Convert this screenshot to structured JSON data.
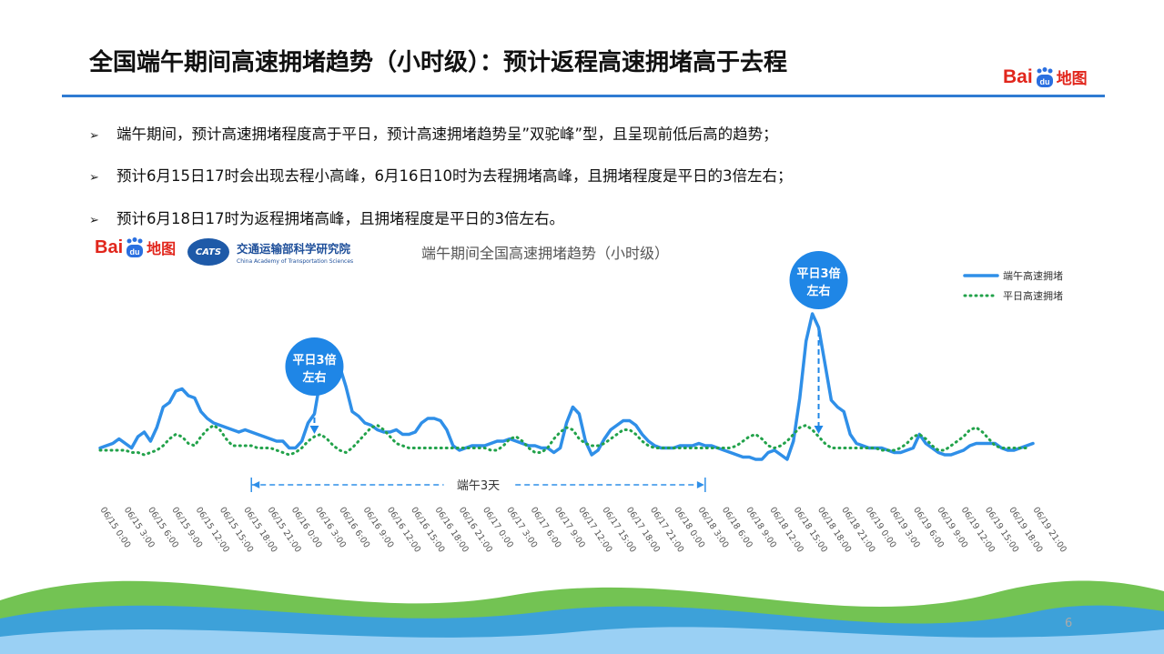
{
  "slide": {
    "title": "全国端午期间高速拥堵趋势（小时级）：预计返程高速拥堵高于去程",
    "page_number": "6"
  },
  "brand": {
    "bai": "Bai",
    "du": "du",
    "ditu": "地图"
  },
  "cats_logo": {
    "mark": "CATS",
    "name_cn": "交通运输部科学研究院",
    "name_en": "China Academy of Transportation Sciences"
  },
  "bullets": [
    "端午期间，预计高速拥堵程度高于平日，预计高速拥堵趋势呈”双驼峰”型，且呈现前低后高的趋势；",
    "预计6月15日17时会出现去程小高峰，6月16日10时为去程拥堵高峰，且拥堵程度是平日的3倍左右；",
    "预计6月18日17时为返程拥堵高峰，且拥堵程度是平日的3倍左右。"
  ],
  "chart_data": {
    "type": "line",
    "title": "端午期间全国高速拥堵趋势（小时级）",
    "x_tick_labels": [
      "06/15 0:00",
      "06/15 3:00",
      "06/15 6:00",
      "06/15 9:00",
      "06/15 12:00",
      "06/15 15:00",
      "06/15 18:00",
      "06/15 21:00",
      "06/16 0:00",
      "06/16 3:00",
      "06/16 6:00",
      "06/16 9:00",
      "06/16 12:00",
      "06/16 15:00",
      "06/16 18:00",
      "06/16 21:00",
      "06/17 0:00",
      "06/17 3:00",
      "06/17 6:00",
      "06/17 9:00",
      "06/17 12:00",
      "06/17 15:00",
      "06/17 18:00",
      "06/17 21:00",
      "06/18 0:00",
      "06/18 3:00",
      "06/18 6:00",
      "06/18 9:00",
      "06/18 12:00",
      "06/18 15:00",
      "06/18 18:00",
      "06/18 21:00",
      "06/19 0:00",
      "06/19 3:00",
      "06/19 6:00",
      "06/19 9:00",
      "06/19 12:00",
      "06/19 15:00",
      "06/19 18:00",
      "06/19 21:00"
    ],
    "series": [
      {
        "name": "端午高速拥堵",
        "color": "#2f8fe8",
        "style": "solid",
        "values": [
          2.1,
          2.2,
          2.3,
          2.5,
          2.3,
          2.1,
          2.6,
          2.8,
          2.4,
          3.0,
          3.9,
          4.1,
          4.6,
          4.7,
          4.4,
          4.3,
          3.7,
          3.4,
          3.2,
          3.1,
          3.0,
          2.9,
          2.8,
          2.9,
          2.8,
          2.7,
          2.6,
          2.5,
          2.4,
          2.4,
          2.1,
          2.1,
          2.4,
          3.2,
          3.6,
          5.2,
          6.2,
          6.1,
          5.7,
          4.8,
          3.7,
          3.5,
          3.2,
          3.1,
          2.9,
          2.8,
          2.8,
          2.9,
          2.7,
          2.7,
          2.8,
          3.2,
          3.4,
          3.4,
          3.3,
          2.9,
          2.2,
          2.0,
          2.1,
          2.2,
          2.2,
          2.2,
          2.3,
          2.4,
          2.4,
          2.5,
          2.4,
          2.3,
          2.2,
          2.2,
          2.1,
          2.1,
          1.9,
          2.1,
          3.2,
          3.9,
          3.6,
          2.4,
          1.8,
          2.0,
          2.5,
          2.9,
          3.1,
          3.3,
          3.3,
          3.1,
          2.7,
          2.4,
          2.2,
          2.1,
          2.1,
          2.1,
          2.2,
          2.2,
          2.2,
          2.3,
          2.2,
          2.2,
          2.1,
          2.0,
          1.9,
          1.8,
          1.7,
          1.7,
          1.6,
          1.6,
          1.9,
          2.0,
          1.8,
          1.6,
          2.4,
          4.3,
          6.8,
          8.0,
          7.4,
          5.8,
          4.2,
          3.9,
          3.7,
          2.7,
          2.3,
          2.2,
          2.1,
          2.1,
          2.1,
          2.0,
          1.9,
          1.9,
          2.0,
          2.1,
          2.7,
          2.3,
          2.1,
          1.9,
          1.8,
          1.8,
          1.9,
          2.0,
          2.2,
          2.3,
          2.3,
          2.3,
          2.3,
          2.1,
          2.0,
          2.0,
          2.1,
          2.2,
          2.3
        ]
      },
      {
        "name": "平日高速拥堵",
        "color": "#22a24a",
        "style": "dotted",
        "values": [
          2.0,
          2.0,
          2.0,
          2.0,
          2.0,
          1.9,
          1.9,
          1.8,
          1.9,
          2.0,
          2.2,
          2.5,
          2.7,
          2.6,
          2.3,
          2.2,
          2.6,
          2.9,
          3.1,
          2.9,
          2.5,
          2.2,
          2.2,
          2.2,
          2.2,
          2.1,
          2.1,
          2.1,
          2.0,
          1.9,
          1.8,
          1.9,
          2.1,
          2.4,
          2.6,
          2.7,
          2.5,
          2.2,
          2.0,
          1.9,
          2.1,
          2.4,
          2.7,
          3.0,
          3.1,
          2.9,
          2.6,
          2.3,
          2.2,
          2.1,
          2.1,
          2.1,
          2.1,
          2.1,
          2.1,
          2.1,
          2.1,
          2.1,
          2.1,
          2.1,
          2.1,
          2.1,
          2.0,
          2.0,
          2.2,
          2.5,
          2.6,
          2.4,
          2.1,
          1.9,
          1.9,
          2.1,
          2.5,
          2.8,
          3.0,
          2.9,
          2.5,
          2.3,
          2.2,
          2.2,
          2.3,
          2.5,
          2.7,
          2.9,
          2.9,
          2.7,
          2.4,
          2.2,
          2.1,
          2.1,
          2.1,
          2.1,
          2.1,
          2.1,
          2.1,
          2.1,
          2.1,
          2.1,
          2.1,
          2.1,
          2.1,
          2.2,
          2.4,
          2.6,
          2.7,
          2.5,
          2.2,
          2.1,
          2.2,
          2.4,
          2.7,
          3.0,
          3.1,
          2.9,
          2.6,
          2.3,
          2.1,
          2.1,
          2.1,
          2.1,
          2.1,
          2.1,
          2.1,
          2.1,
          2.0,
          2.0,
          2.0,
          2.1,
          2.3,
          2.6,
          2.7,
          2.5,
          2.2,
          2.0,
          2.0,
          2.2,
          2.4,
          2.6,
          2.9,
          3.0,
          2.8,
          2.5,
          2.2,
          2.1,
          2.1,
          2.1,
          2.1,
          2.1
        ]
      }
    ],
    "callouts": [
      {
        "text": "平日3倍左右",
        "line1": "平日3倍",
        "line2": "左右",
        "x_index": 34
      },
      {
        "text": "平日3倍左右",
        "line1": "平日3倍",
        "line2": "左右",
        "x_index": 114
      }
    ],
    "span_annotation": {
      "text": "端午3天",
      "from_index": 24,
      "to_index": 96
    },
    "legend_position": "top-right",
    "grid": false
  }
}
